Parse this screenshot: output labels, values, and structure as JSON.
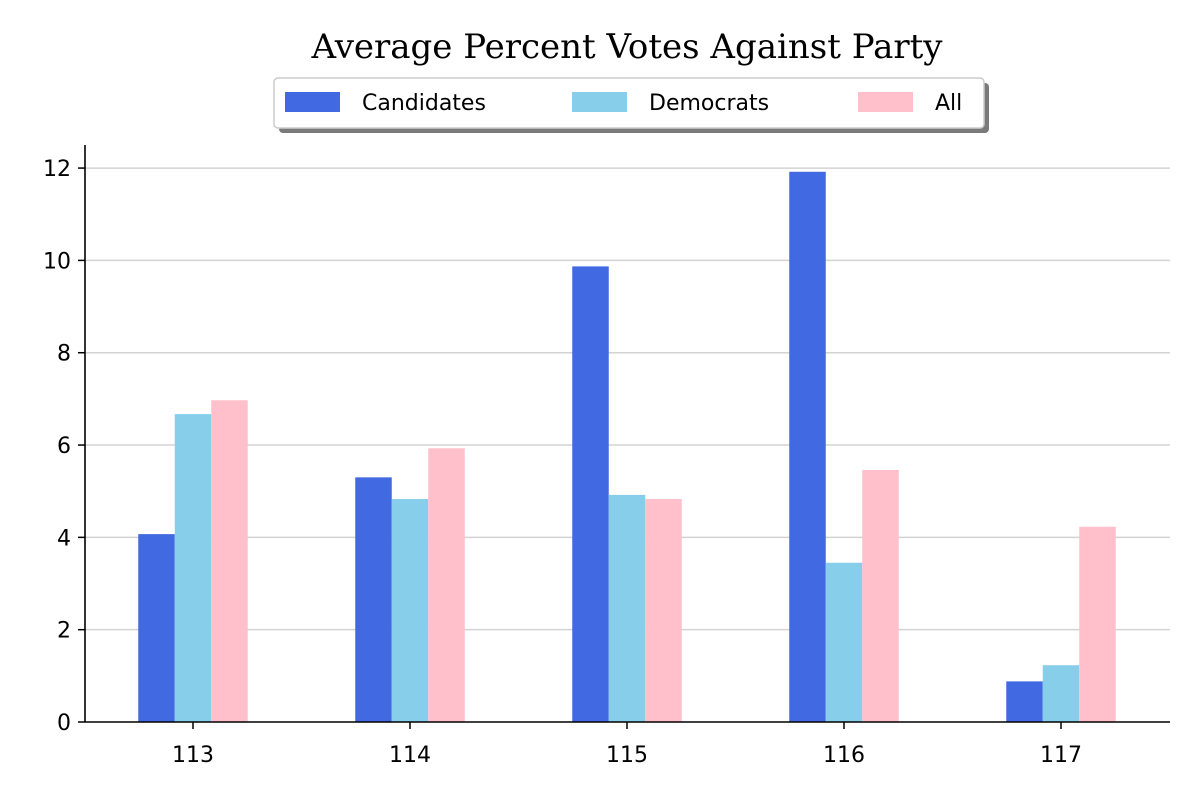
{
  "chart_data": {
    "type": "bar",
    "title": "Average Percent Votes Against Party",
    "xlabel": "",
    "ylabel": "",
    "categories": [
      "113",
      "114",
      "115",
      "116",
      "117"
    ],
    "series": [
      {
        "name": "Candidates",
        "color": "#4169e1",
        "values": [
          4.07,
          5.3,
          9.87,
          11.92,
          0.88
        ]
      },
      {
        "name": "Democrats",
        "color": "#87ceeb",
        "values": [
          6.67,
          4.83,
          4.92,
          3.45,
          1.23
        ]
      },
      {
        "name": "All",
        "color": "#ffc0cb",
        "values": [
          6.97,
          5.93,
          4.83,
          5.46,
          4.23
        ]
      }
    ],
    "ylim": [
      0,
      12.5
    ],
    "yticks": [
      0,
      2,
      4,
      6,
      8,
      10,
      12
    ],
    "grid": true,
    "legend_position": "top-center"
  }
}
